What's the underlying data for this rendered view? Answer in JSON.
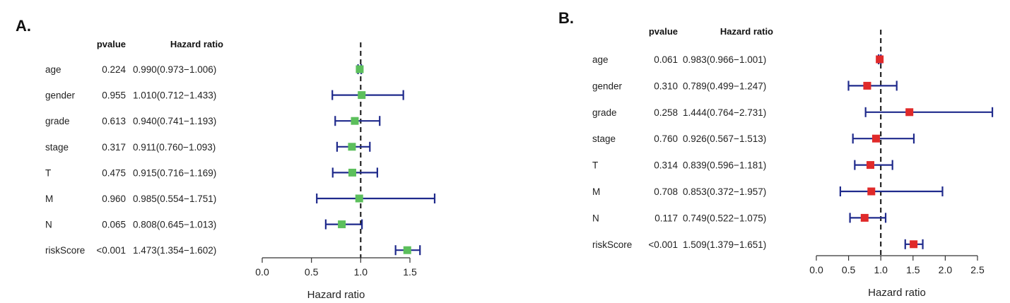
{
  "chart_data": [
    {
      "type": "forest",
      "panel_label": "A.",
      "columns": {
        "pvalue": "pvalue",
        "hr": "Hazard ratio"
      },
      "xlabel": "Hazard ratio",
      "xlim": [
        0,
        1.5
      ],
      "xticks": [
        "0.0",
        "0.5",
        "1.0",
        "1.5"
      ],
      "reference_line": 1.0,
      "marker_color": "#5cbf5c",
      "line_color": "#1f2a8c",
      "rows": [
        {
          "variable": "age",
          "pvalue": "0.224",
          "hr_text": "0.990(0.973−1.006)",
          "hr": 0.99,
          "low": 0.973,
          "high": 1.006
        },
        {
          "variable": "gender",
          "pvalue": "0.955",
          "hr_text": "1.010(0.712−1.433)",
          "hr": 1.01,
          "low": 0.712,
          "high": 1.433
        },
        {
          "variable": "grade",
          "pvalue": "0.613",
          "hr_text": "0.940(0.741−1.193)",
          "hr": 0.94,
          "low": 0.741,
          "high": 1.193
        },
        {
          "variable": "stage",
          "pvalue": "0.317",
          "hr_text": "0.911(0.760−1.093)",
          "hr": 0.911,
          "low": 0.76,
          "high": 1.093
        },
        {
          "variable": "T",
          "pvalue": "0.475",
          "hr_text": "0.915(0.716−1.169)",
          "hr": 0.915,
          "low": 0.716,
          "high": 1.169
        },
        {
          "variable": "M",
          "pvalue": "0.960",
          "hr_text": "0.985(0.554−1.751)",
          "hr": 0.985,
          "low": 0.554,
          "high": 1.751
        },
        {
          "variable": "N",
          "pvalue": "0.065",
          "hr_text": "0.808(0.645−1.013)",
          "hr": 0.808,
          "low": 0.645,
          "high": 1.013
        },
        {
          "variable": "riskScore",
          "pvalue": "<0.001",
          "hr_text": "1.473(1.354−1.602)",
          "hr": 1.473,
          "low": 1.354,
          "high": 1.602
        }
      ]
    },
    {
      "type": "forest",
      "panel_label": "B.",
      "columns": {
        "pvalue": "pvalue",
        "hr": "Hazard ratio"
      },
      "xlabel": "Hazard ratio",
      "xlim": [
        0,
        2.5
      ],
      "xticks": [
        "0.0",
        "0.5",
        "1.0",
        "1.5",
        "2.0",
        "2.5"
      ],
      "reference_line": 1.0,
      "marker_color": "#e02a2a",
      "line_color": "#1f2a8c",
      "rows": [
        {
          "variable": "age",
          "pvalue": "0.061",
          "hr_text": "0.983(0.966−1.001)",
          "hr": 0.983,
          "low": 0.966,
          "high": 1.001
        },
        {
          "variable": "gender",
          "pvalue": "0.310",
          "hr_text": "0.789(0.499−1.247)",
          "hr": 0.789,
          "low": 0.499,
          "high": 1.247
        },
        {
          "variable": "grade",
          "pvalue": "0.258",
          "hr_text": "1.444(0.764−2.731)",
          "hr": 1.444,
          "low": 0.764,
          "high": 2.731
        },
        {
          "variable": "stage",
          "pvalue": "0.760",
          "hr_text": "0.926(0.567−1.513)",
          "hr": 0.926,
          "low": 0.567,
          "high": 1.513
        },
        {
          "variable": "T",
          "pvalue": "0.314",
          "hr_text": "0.839(0.596−1.181)",
          "hr": 0.839,
          "low": 0.596,
          "high": 1.181
        },
        {
          "variable": "M",
          "pvalue": "0.708",
          "hr_text": "0.853(0.372−1.957)",
          "hr": 0.853,
          "low": 0.372,
          "high": 1.957
        },
        {
          "variable": "N",
          "pvalue": "0.117",
          "hr_text": "0.749(0.522−1.075)",
          "hr": 0.749,
          "low": 0.522,
          "high": 1.075
        },
        {
          "variable": "riskScore",
          "pvalue": "<0.001",
          "hr_text": "1.509(1.379−1.651)",
          "hr": 1.509,
          "low": 1.379,
          "high": 1.651
        }
      ]
    }
  ]
}
